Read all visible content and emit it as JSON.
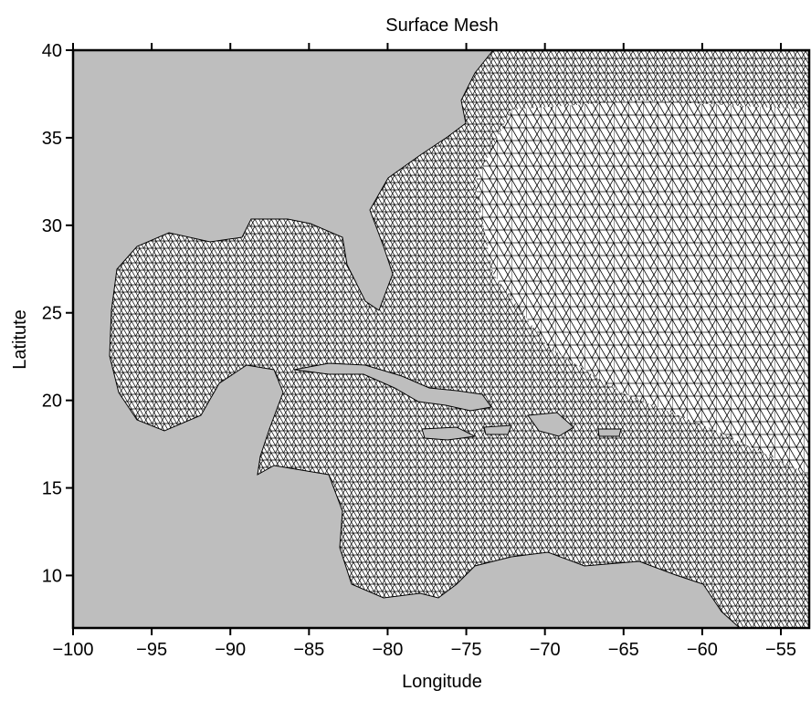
{
  "chart_data": {
    "type": "mesh",
    "title": "Surface Mesh",
    "x_label": "Longitude",
    "y_label": "Latitute",
    "xlim": [
      -100,
      -53.2
    ],
    "ylim": [
      7,
      40
    ],
    "xticks": [
      {
        "value": -100,
        "label": "−100"
      },
      {
        "value": -95,
        "label": "−95"
      },
      {
        "value": -90,
        "label": "−90"
      },
      {
        "value": -85,
        "label": "−85"
      },
      {
        "value": -80,
        "label": "−80"
      },
      {
        "value": -75,
        "label": "−75"
      },
      {
        "value": -70,
        "label": "−70"
      },
      {
        "value": -65,
        "label": "−65"
      },
      {
        "value": -60,
        "label": "−60"
      },
      {
        "value": -55,
        "label": "−55"
      }
    ],
    "yticks": [
      10,
      15,
      20,
      25,
      30,
      35,
      40
    ],
    "land_color": "#bebebe",
    "mesh_color": "#000000"
  }
}
